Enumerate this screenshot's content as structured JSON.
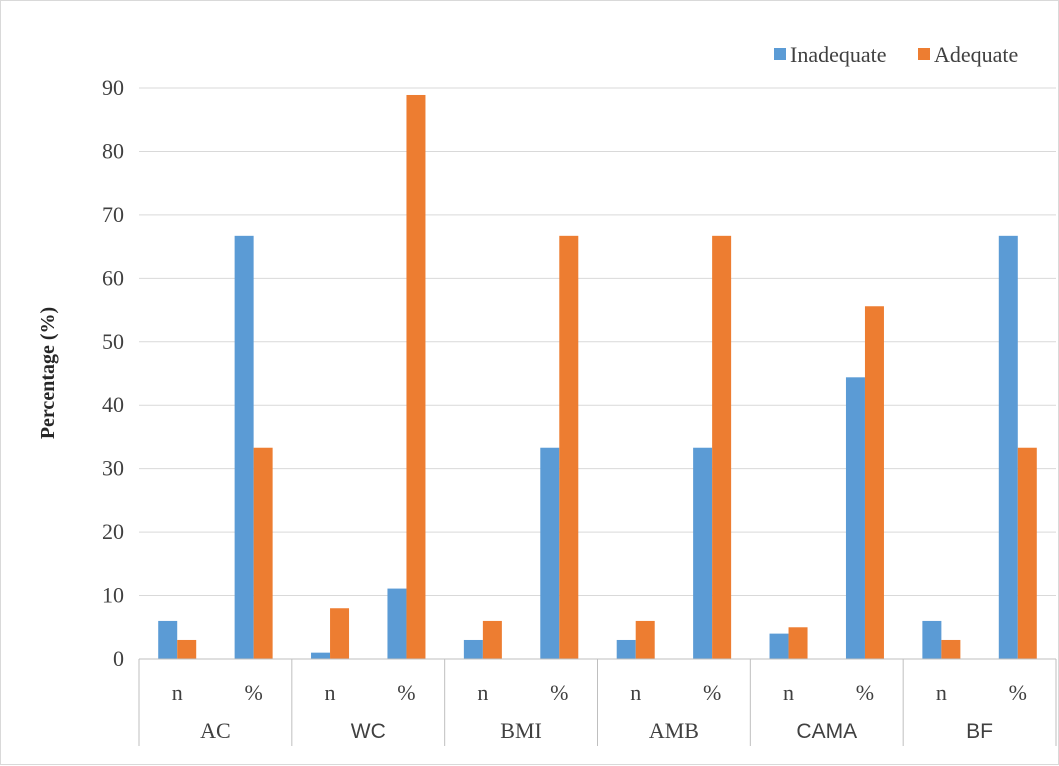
{
  "chart_data": {
    "type": "bar",
    "title": "",
    "xlabel": "",
    "ylabel": "Percentage (%)",
    "ylim": [
      0,
      90
    ],
    "yticks": [
      "0",
      "10",
      "20",
      "30",
      "40",
      "50",
      "60",
      "70",
      "80",
      "90"
    ],
    "groups": [
      "AC",
      "WC",
      "BMI",
      "AMB",
      "CAMA",
      "BF"
    ],
    "subcategories": [
      "n",
      "%"
    ],
    "categories": [
      "AC n",
      "AC %",
      "WC n",
      "WC %",
      "BMI n",
      "BMI %",
      "AMB n",
      "AMB %",
      "CAMA n",
      "CAMA %",
      "BF n",
      "BF %"
    ],
    "series": [
      {
        "name": "Inadequate",
        "color": "#5B9BD5",
        "values": [
          6,
          66.7,
          1,
          11.1,
          3,
          33.3,
          3,
          33.3,
          4,
          44.4,
          6,
          66.7
        ]
      },
      {
        "name": "Adequate",
        "color": "#ED7D31",
        "values": [
          3,
          33.3,
          8,
          88.9,
          6,
          66.7,
          6,
          66.7,
          5,
          55.6,
          3,
          33.3
        ]
      }
    ],
    "grid": true,
    "legend_position": "top-right"
  }
}
